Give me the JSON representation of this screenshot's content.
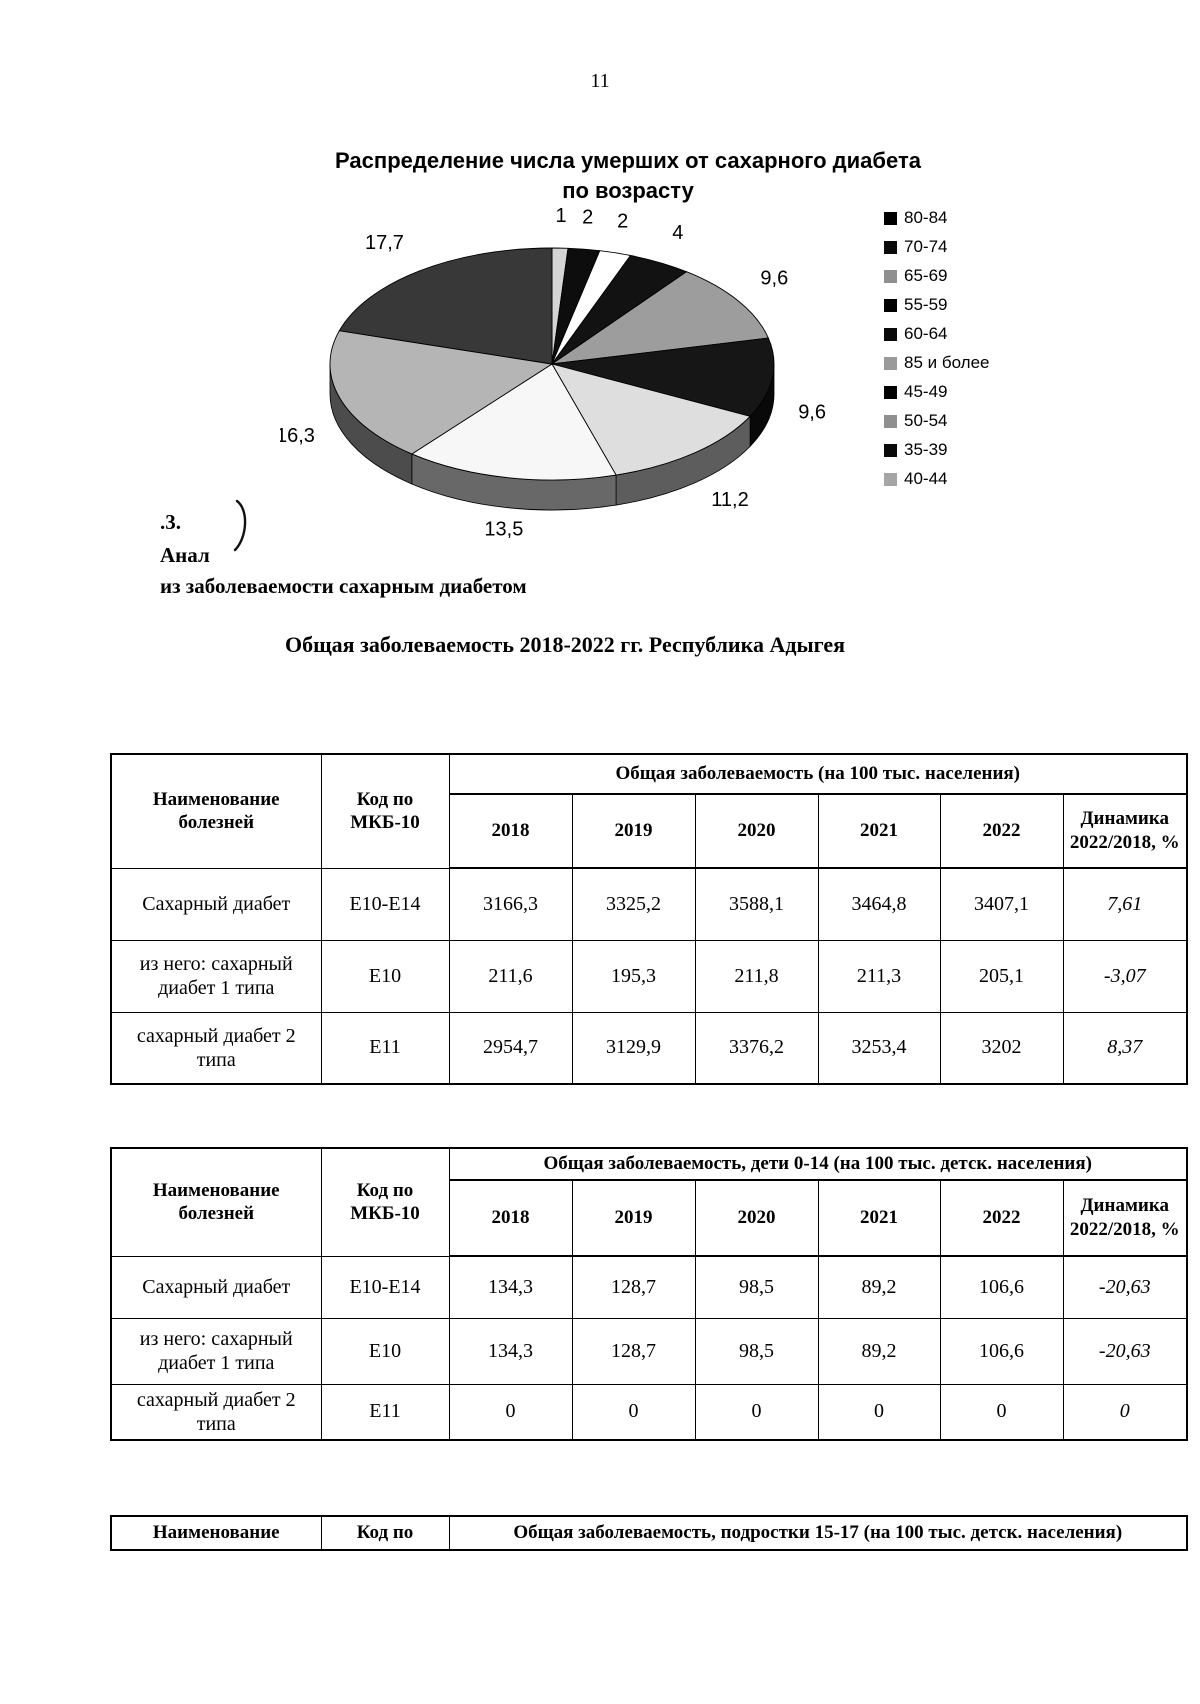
{
  "page_number": "11",
  "chart_data": {
    "type": "pie",
    "style": "3d-pie-monochrome-scan",
    "title": "Распределение числа умерших от сахарного диабета",
    "subtitle": "по возрасту",
    "legend_position": "right",
    "labels": [
      "80-84",
      "70-74",
      "65-69",
      "55-59",
      "60-64",
      "85 и более",
      "45-49",
      "50-54",
      "35-39",
      "40-44"
    ],
    "values": [
      1,
      2,
      2,
      4,
      9.6,
      9.6,
      11.2,
      13.5,
      16.3,
      17.7
    ],
    "value_labels": [
      "1",
      "2",
      "2",
      "4",
      "9,6",
      "9,6",
      "11,2",
      "13,5",
      "16,3",
      "17,7"
    ],
    "slice_colors": [
      "#d4d4d4",
      "#0d0d0d",
      "#ffffff",
      "#121212",
      "#9d9d9d",
      "#161616",
      "#dedede",
      "#f7f7f7",
      "#b5b5b5",
      "#383838"
    ],
    "legend": [
      {
        "label": "80-84",
        "color": "#000000"
      },
      {
        "label": "70-74",
        "color": "#0a0a0a"
      },
      {
        "label": "65-69",
        "color": "#8f8f8f"
      },
      {
        "label": "55-59",
        "color": "#000000"
      },
      {
        "label": "60-64",
        "color": "#0a0a0a"
      },
      {
        "label": "85 и более",
        "color": "#9a9a9a"
      },
      {
        "label": "45-49",
        "color": "#000000"
      },
      {
        "label": "50-54",
        "color": "#8f8f8f"
      },
      {
        "label": "35-39",
        "color": "#0a0a0a"
      },
      {
        "label": "40-44",
        "color": "#a5a5a5"
      }
    ]
  },
  "section": {
    "number": ".3.",
    "line1": "Анал",
    "line2": "из заболеваемости сахарным диабетом"
  },
  "tables_title": "Общая заболеваемость 2018-2022 гг. Республика Адыгея",
  "tables": [
    {
      "name_header": "Наименование болезней",
      "code_header": "Код по МКБ-10",
      "group_header": "Общая заболеваемость (на 100 тыс. населения)",
      "year_headers": [
        "2018",
        "2019",
        "2020",
        "2021",
        "2022"
      ],
      "dynamics_header": "Динамика 2022/2018, %",
      "rows": [
        [
          "Сахарный диабет",
          "Е10-Е14",
          "3166,3",
          "3325,2",
          "3588,1",
          "3464,8",
          "3407,1",
          "7,61"
        ],
        [
          "из него: сахарный диабет 1 типа",
          "Е10",
          "211,6",
          "195,3",
          "211,8",
          "211,3",
          "205,1",
          "-3,07"
        ],
        [
          "сахарный диабет 2 типа",
          "Е11",
          "2954,7",
          "3129,9",
          "3376,2",
          "3253,4",
          "3202",
          "8,37"
        ]
      ]
    },
    {
      "name_header": "Наименование болезней",
      "code_header": "Код по МКБ-10",
      "group_header": "Общая заболеваемость, дети 0-14 (на 100 тыс. детск. населения)",
      "year_headers": [
        "2018",
        "2019",
        "2020",
        "2021",
        "2022"
      ],
      "dynamics_header": "Динамика 2022/2018, %",
      "rows": [
        [
          "Сахарный диабет",
          "Е10-Е14",
          "134,3",
          "128,7",
          "98,5",
          "89,2",
          "106,6",
          "-20,63"
        ],
        [
          "из него: сахарный диабет 1 типа",
          "Е10",
          "134,3",
          "128,7",
          "98,5",
          "89,2",
          "106,6",
          "-20,63"
        ],
        [
          "сахарный диабет 2 типа",
          "Е11",
          "0",
          "0",
          "0",
          "0",
          "0",
          "0"
        ]
      ]
    },
    {
      "fragment": true,
      "name_header": "Наименование",
      "code_header": "Код по",
      "group_header": "Общая заболеваемость, подростки 15-17 (на 100 тыс. детск. населения)"
    }
  ]
}
